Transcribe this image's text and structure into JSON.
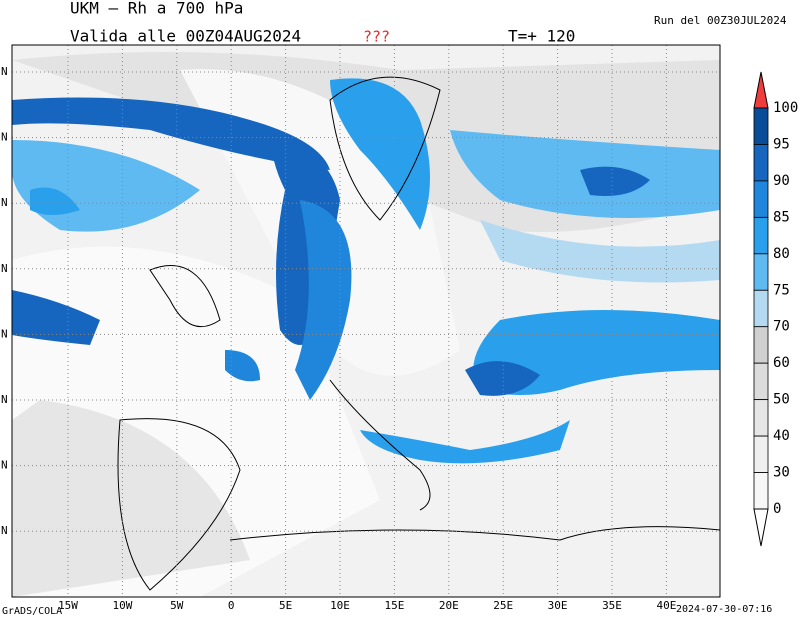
{
  "header": {
    "title": "UKM – Rh a 700 hPa",
    "valid": "Valida alle 00Z04AUG2024",
    "flag": "???",
    "step": "T=+ 120",
    "run": "Run del 00Z30JUL2024"
  },
  "map": {
    "x_labels": [
      "15W",
      "10W",
      "5W",
      "0",
      "5E",
      "10E",
      "15E",
      "20E",
      "25E",
      "30E",
      "35E",
      "40E"
    ],
    "y_labels": [
      "N",
      "N",
      "N",
      "N",
      "N",
      "N",
      "N",
      "N"
    ]
  },
  "legend": {
    "levels": [
      {
        "label": "100",
        "color": "#094c98"
      },
      {
        "label": "95",
        "color": "#1666c0"
      },
      {
        "label": "90",
        "color": "#1f86dc"
      },
      {
        "label": "85",
        "color": "#2aa0ec"
      },
      {
        "label": "80",
        "color": "#5fbaf2"
      },
      {
        "label": "75",
        "color": "#b4daf2"
      },
      {
        "label": "70",
        "color": "#d0d0d0"
      },
      {
        "label": "60",
        "color": "#dcdcdc"
      },
      {
        "label": "50",
        "color": "#e6e6e6"
      },
      {
        "label": "40",
        "color": "#efefef"
      },
      {
        "label": "30",
        "color": "#f7f7f7"
      },
      {
        "label": "0",
        "color": "#ffffff"
      }
    ]
  },
  "footer": {
    "credit": "GrADS/COLA",
    "stamp": "2024-07-30-07:16"
  }
}
